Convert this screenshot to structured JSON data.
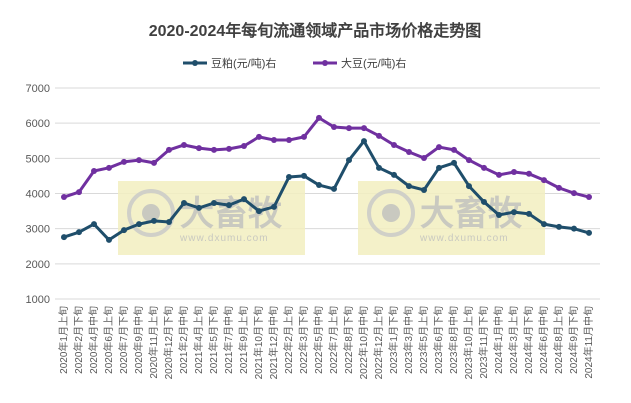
{
  "chart_data": {
    "type": "line",
    "title": "2020-2024年每旬流通领域产品市场价格走势图",
    "xlabel": "",
    "ylabel": "",
    "ylim": [
      1000,
      7000
    ],
    "yticks": [
      1000,
      2000,
      3000,
      4000,
      5000,
      6000,
      7000
    ],
    "grid": true,
    "legend_position": "top",
    "categories": [
      "2020年1月上旬",
      "2020年2月下旬",
      "2020年4月中旬",
      "2020年6月上旬",
      "2020年7月下旬",
      "2020年9月中旬",
      "2020年11月上旬",
      "2020年12月下旬",
      "2021年2月中旬",
      "2021年4月上旬",
      "2021年5月下旬",
      "2021年7月中旬",
      "2021年9月上旬",
      "2021年10月下旬",
      "2021年12月中旬",
      "2022年2月上旬",
      "2022年3月下旬",
      "2022年5月中旬",
      "2022年7月上旬",
      "2022年8月下旬",
      "2022年10月中旬",
      "2022年12月上旬",
      "2023年1月下旬",
      "2023年3月中旬",
      "2023年5月上旬",
      "2023年6月下旬",
      "2023年8月中旬",
      "2023年10月上旬",
      "2023年11月下旬",
      "2024年1月中旬",
      "2024年3月上旬",
      "2024年4月下旬",
      "2024年6月中旬",
      "2024年8月上旬",
      "2024年9月下旬",
      "2024年11月中旬"
    ],
    "series": [
      {
        "name": "豆粕(元/吨)右",
        "color": "#1f4e6b",
        "values": [
          2760,
          2900,
          3130,
          2680,
          2960,
          3130,
          3220,
          3190,
          3730,
          3590,
          3730,
          3670,
          3840,
          3500,
          3620,
          4470,
          4500,
          4240,
          4130,
          4950,
          5490,
          4730,
          4530,
          4210,
          4100,
          4730,
          4870,
          4210,
          3760,
          3390,
          3470,
          3420,
          3130,
          3050,
          3000,
          2880
        ]
      },
      {
        "name": "大豆(元/吨)右",
        "color": "#7030a0",
        "values": [
          3900,
          4040,
          4640,
          4730,
          4900,
          4950,
          4870,
          5240,
          5380,
          5290,
          5240,
          5270,
          5350,
          5610,
          5520,
          5520,
          5610,
          6150,
          5890,
          5860,
          5860,
          5640,
          5380,
          5180,
          5010,
          5320,
          5240,
          4950,
          4730,
          4530,
          4610,
          4560,
          4380,
          4160,
          4010,
          3900
        ]
      }
    ]
  },
  "watermark": {
    "brand": "大畜牧",
    "url": "www.dxumu.com",
    "color": "#f2efc0"
  }
}
